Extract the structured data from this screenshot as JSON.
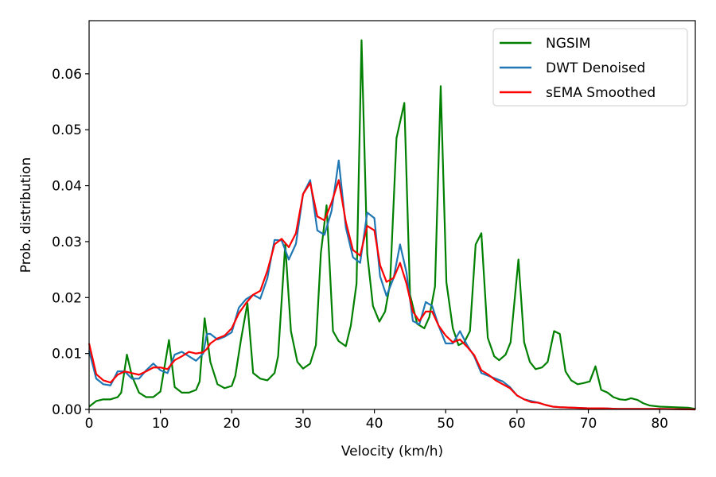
{
  "chart_data": {
    "type": "line",
    "title": "",
    "xlabel": "Velocity (km/h)",
    "ylabel": "Prob. distribution",
    "xlim": [
      0,
      85
    ],
    "ylim": [
      0,
      0.0695
    ],
    "x_ticks": [
      0,
      10,
      20,
      30,
      40,
      50,
      60,
      70,
      80
    ],
    "x_tick_labels": [
      "0",
      "10",
      "20",
      "30",
      "40",
      "50",
      "60",
      "70",
      "80"
    ],
    "y_ticks": [
      0,
      0.01,
      0.02,
      0.03,
      0.04,
      0.05,
      0.06
    ],
    "y_tick_labels": [
      "0.00",
      "0.01",
      "0.02",
      "0.03",
      "0.04",
      "0.05",
      "0.06"
    ],
    "grid": false,
    "legend_position": "top-right",
    "series": [
      {
        "name": "NGSIM",
        "color": "#008000",
        "points": [
          [
            0,
            0.0005
          ],
          [
            1,
            0.0015
          ],
          [
            2,
            0.0018
          ],
          [
            3,
            0.0018
          ],
          [
            4,
            0.0022
          ],
          [
            4.5,
            0.003
          ],
          [
            5.3,
            0.0098
          ],
          [
            6,
            0.006
          ],
          [
            7,
            0.003
          ],
          [
            8,
            0.0022
          ],
          [
            9,
            0.0022
          ],
          [
            10,
            0.0032
          ],
          [
            11.2,
            0.0124
          ],
          [
            12,
            0.004
          ],
          [
            13,
            0.003
          ],
          [
            14,
            0.003
          ],
          [
            15,
            0.0035
          ],
          [
            15.5,
            0.005
          ],
          [
            16.2,
            0.0163
          ],
          [
            17,
            0.0085
          ],
          [
            18,
            0.0045
          ],
          [
            19,
            0.0038
          ],
          [
            20,
            0.0042
          ],
          [
            20.5,
            0.006
          ],
          [
            21.3,
            0.0125
          ],
          [
            22.2,
            0.019
          ],
          [
            23,
            0.0065
          ],
          [
            24,
            0.0055
          ],
          [
            25,
            0.0052
          ],
          [
            26,
            0.0065
          ],
          [
            26.5,
            0.0095
          ],
          [
            27.5,
            0.0295
          ],
          [
            28.3,
            0.014
          ],
          [
            29.2,
            0.0085
          ],
          [
            30,
            0.0073
          ],
          [
            31,
            0.0082
          ],
          [
            31.8,
            0.0115
          ],
          [
            32.5,
            0.028
          ],
          [
            33.3,
            0.0365
          ],
          [
            34.2,
            0.014
          ],
          [
            35,
            0.0122
          ],
          [
            36,
            0.0113
          ],
          [
            36.7,
            0.015
          ],
          [
            37.5,
            0.0225
          ],
          [
            38.2,
            0.066
          ],
          [
            39,
            0.0278
          ],
          [
            39.8,
            0.0185
          ],
          [
            40.7,
            0.0157
          ],
          [
            41.5,
            0.0175
          ],
          [
            42.2,
            0.0225
          ],
          [
            43.1,
            0.0485
          ],
          [
            44.2,
            0.0548
          ],
          [
            45,
            0.0205
          ],
          [
            46,
            0.0153
          ],
          [
            47,
            0.0145
          ],
          [
            47.7,
            0.0165
          ],
          [
            48.5,
            0.022
          ],
          [
            49.3,
            0.0578
          ],
          [
            50.1,
            0.0227
          ],
          [
            51,
            0.0145
          ],
          [
            51.8,
            0.0115
          ],
          [
            52.6,
            0.012
          ],
          [
            53.4,
            0.014
          ],
          [
            54.2,
            0.0295
          ],
          [
            55,
            0.0315
          ],
          [
            55.9,
            0.0128
          ],
          [
            56.8,
            0.0095
          ],
          [
            57.5,
            0.0088
          ],
          [
            58.4,
            0.0098
          ],
          [
            59.1,
            0.012
          ],
          [
            60.2,
            0.0268
          ],
          [
            61,
            0.012
          ],
          [
            61.8,
            0.0085
          ],
          [
            62.6,
            0.0072
          ],
          [
            63.5,
            0.0075
          ],
          [
            64.3,
            0.0085
          ],
          [
            65.2,
            0.014
          ],
          [
            66,
            0.0135
          ],
          [
            66.8,
            0.0068
          ],
          [
            67.6,
            0.0052
          ],
          [
            68.5,
            0.0045
          ],
          [
            69.3,
            0.0047
          ],
          [
            70.2,
            0.005
          ],
          [
            71,
            0.0077
          ],
          [
            71.8,
            0.0035
          ],
          [
            72.7,
            0.003
          ],
          [
            73.5,
            0.0022
          ],
          [
            74.4,
            0.0018
          ],
          [
            75.2,
            0.0017
          ],
          [
            76,
            0.002
          ],
          [
            76.9,
            0.0017
          ],
          [
            77.7,
            0.0011
          ],
          [
            78.6,
            0.0007
          ],
          [
            80,
            0.0005
          ],
          [
            82,
            0.0004
          ],
          [
            84,
            0.0003
          ],
          [
            85,
            0.0001
          ]
        ]
      },
      {
        "name": "DWT Denoised",
        "color": "#1f77b4",
        "points": [
          [
            0,
            0.0105
          ],
          [
            1,
            0.0055
          ],
          [
            2,
            0.0045
          ],
          [
            3,
            0.0043
          ],
          [
            4,
            0.0068
          ],
          [
            5,
            0.0068
          ],
          [
            6,
            0.0055
          ],
          [
            7,
            0.0055
          ],
          [
            8,
            0.007
          ],
          [
            9,
            0.0082
          ],
          [
            10,
            0.007
          ],
          [
            11,
            0.0065
          ],
          [
            12,
            0.0098
          ],
          [
            13,
            0.0103
          ],
          [
            14,
            0.0095
          ],
          [
            15,
            0.0087
          ],
          [
            16,
            0.01
          ],
          [
            16.5,
            0.0135
          ],
          [
            17,
            0.0135
          ],
          [
            18,
            0.0125
          ],
          [
            19,
            0.013
          ],
          [
            20,
            0.0138
          ],
          [
            21,
            0.0182
          ],
          [
            22,
            0.0197
          ],
          [
            23,
            0.0205
          ],
          [
            24,
            0.0198
          ],
          [
            25,
            0.0235
          ],
          [
            26,
            0.0303
          ],
          [
            27,
            0.0302
          ],
          [
            28,
            0.0268
          ],
          [
            29,
            0.0296
          ],
          [
            30,
            0.0385
          ],
          [
            31,
            0.041
          ],
          [
            32,
            0.032
          ],
          [
            33,
            0.0312
          ],
          [
            34,
            0.0355
          ],
          [
            35,
            0.0445
          ],
          [
            36,
            0.0325
          ],
          [
            37,
            0.0272
          ],
          [
            38,
            0.0262
          ],
          [
            39,
            0.0352
          ],
          [
            40,
            0.0342
          ],
          [
            40.8,
            0.0238
          ],
          [
            41.7,
            0.0203
          ],
          [
            42.7,
            0.0235
          ],
          [
            43.6,
            0.0295
          ],
          [
            44.5,
            0.0245
          ],
          [
            45.4,
            0.0158
          ],
          [
            46.3,
            0.0152
          ],
          [
            47.2,
            0.0192
          ],
          [
            48.1,
            0.0185
          ],
          [
            49,
            0.015
          ],
          [
            50,
            0.0118
          ],
          [
            51,
            0.0118
          ],
          [
            52,
            0.014
          ],
          [
            53,
            0.0115
          ],
          [
            54,
            0.0095
          ],
          [
            55,
            0.0065
          ],
          [
            56,
            0.006
          ],
          [
            57,
            0.0055
          ],
          [
            58,
            0.005
          ],
          [
            59,
            0.004
          ],
          [
            60,
            0.0025
          ],
          [
            61,
            0.0018
          ],
          [
            62,
            0.0015
          ],
          [
            63,
            0.0012
          ],
          [
            64,
            0.0008
          ],
          [
            65,
            0.0005
          ],
          [
            66,
            0.0004
          ],
          [
            68,
            0.0003
          ],
          [
            70,
            0.0002
          ],
          [
            72,
            0.0002
          ],
          [
            74,
            0.0001
          ],
          [
            76,
            0.0001
          ],
          [
            78,
            0.0001
          ],
          [
            80,
            0.0001
          ],
          [
            85,
            0
          ]
        ]
      },
      {
        "name": "sEMA Smoothed",
        "color": "#ff0000",
        "points": [
          [
            0,
            0.0118
          ],
          [
            1,
            0.0063
          ],
          [
            2,
            0.0052
          ],
          [
            3,
            0.0048
          ],
          [
            4,
            0.0062
          ],
          [
            5,
            0.0068
          ],
          [
            6,
            0.0065
          ],
          [
            7,
            0.0062
          ],
          [
            8,
            0.0068
          ],
          [
            9,
            0.0075
          ],
          [
            10,
            0.0075
          ],
          [
            11,
            0.0072
          ],
          [
            12,
            0.0088
          ],
          [
            13,
            0.0095
          ],
          [
            14,
            0.0103
          ],
          [
            15,
            0.01
          ],
          [
            16,
            0.0102
          ],
          [
            16.5,
            0.0108
          ],
          [
            17,
            0.0118
          ],
          [
            18,
            0.0127
          ],
          [
            19,
            0.0132
          ],
          [
            20,
            0.0145
          ],
          [
            21,
            0.0172
          ],
          [
            22,
            0.019
          ],
          [
            23,
            0.0205
          ],
          [
            24,
            0.0212
          ],
          [
            25,
            0.0248
          ],
          [
            26,
            0.0295
          ],
          [
            27,
            0.0305
          ],
          [
            28,
            0.029
          ],
          [
            29,
            0.0315
          ],
          [
            30,
            0.0385
          ],
          [
            31,
            0.0405
          ],
          [
            32,
            0.0345
          ],
          [
            33,
            0.0338
          ],
          [
            34,
            0.037
          ],
          [
            35,
            0.041
          ],
          [
            36,
            0.0335
          ],
          [
            37,
            0.0285
          ],
          [
            38,
            0.0275
          ],
          [
            39,
            0.0328
          ],
          [
            40,
            0.032
          ],
          [
            40.8,
            0.0258
          ],
          [
            41.7,
            0.0228
          ],
          [
            42.7,
            0.0235
          ],
          [
            43.6,
            0.0262
          ],
          [
            44.5,
            0.0225
          ],
          [
            45.4,
            0.0175
          ],
          [
            46.3,
            0.0158
          ],
          [
            47.2,
            0.0175
          ],
          [
            48.1,
            0.0175
          ],
          [
            49,
            0.015
          ],
          [
            50,
            0.0132
          ],
          [
            51,
            0.012
          ],
          [
            52,
            0.0125
          ],
          [
            53,
            0.0112
          ],
          [
            54,
            0.0097
          ],
          [
            55,
            0.007
          ],
          [
            56,
            0.0062
          ],
          [
            57,
            0.0052
          ],
          [
            58,
            0.0045
          ],
          [
            59,
            0.0038
          ],
          [
            60,
            0.0025
          ],
          [
            61,
            0.0018
          ],
          [
            62,
            0.0013
          ],
          [
            63,
            0.0012
          ],
          [
            64,
            0.0008
          ],
          [
            65,
            0.0005
          ],
          [
            66,
            0.0004
          ],
          [
            68,
            0.0003
          ],
          [
            70,
            0.0002
          ],
          [
            72,
            0.0002
          ],
          [
            74,
            0.0001
          ],
          [
            76,
            0.0001
          ],
          [
            78,
            0.0001
          ],
          [
            80,
            0.0001
          ],
          [
            85,
            0
          ]
        ]
      }
    ]
  }
}
